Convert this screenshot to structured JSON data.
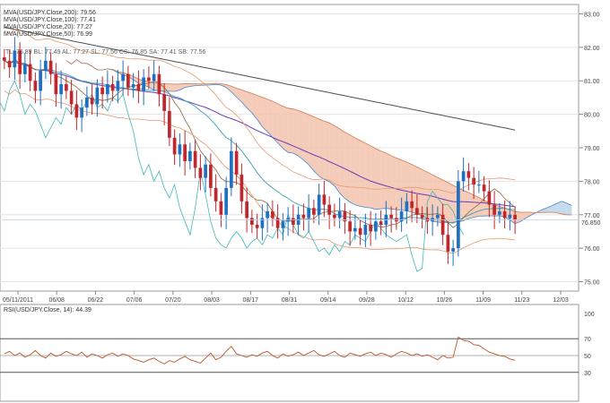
{
  "chart_data": [
    {
      "type": "candlestick",
      "symbol": "USD/JPY",
      "legend": [
        {
          "name": "MVA(USD/JPY.Close,200)",
          "value": "79.56",
          "color": "#5a5a5a"
        },
        {
          "name": "MVA(USD/JPY.Close,100)",
          "value": "77.41",
          "color": "#6a3db8"
        },
        {
          "name": "MVA(USD/JPY.Close,20)",
          "value": "77.27",
          "color": "#3aa3b0"
        },
        {
          "name": "MVA(USD/JPY.Close,50)",
          "value": "76.99",
          "color": "#8a6a3a"
        }
      ],
      "ichimoku_legend": "TL: 76.89  BL: 77.49  AL: 77.27  SL: 77.56  CS: 76.85  SA: 77.41  SB: 77.56",
      "last_price": "76.850",
      "x_tick_labels": [
        "05/11/2011",
        "06/08",
        "06/22",
        "07/06",
        "07/20",
        "08/03",
        "08/17",
        "08/31",
        "09/14",
        "09/28",
        "10/12",
        "10/26",
        "11/09",
        "11/23",
        "12/03"
      ],
      "y_tick_labels": [
        "83.00",
        "82.00",
        "81.00",
        "80.00",
        "79.00",
        "78.00",
        "77.00",
        "76.00",
        "75.00"
      ],
      "ylim": [
        74.8,
        83.2
      ],
      "close": [
        81.6,
        81.4,
        81.9,
        81.2,
        81.5,
        81.0,
        80.7,
        81.3,
        81.6,
        81.2,
        80.6,
        80.9,
        80.7,
        80.3,
        79.9,
        80.2,
        80.5,
        80.3,
        80.8,
        80.6,
        80.9,
        80.7,
        81.0,
        81.2,
        80.8,
        80.9,
        80.7,
        81.1,
        81.0,
        81.2,
        80.6,
        80.1,
        79.3,
        78.8,
        79.1,
        78.6,
        78.9,
        78.4,
        78.1,
        78.5,
        77.8,
        77.4,
        77.0,
        77.8,
        78.9,
        78.2,
        77.4,
        76.9,
        76.7,
        76.6,
        76.9,
        77.1,
        76.9,
        76.6,
        76.8,
        76.9,
        76.7,
        77.0,
        76.9,
        77.2,
        77.0,
        77.6,
        77.3,
        77.0,
        76.9,
        77.1,
        76.8,
        76.5,
        76.6,
        76.4,
        76.7,
        76.5,
        76.8,
        76.7,
        77.0,
        76.9,
        76.8,
        77.1,
        77.4,
        77.2,
        77.0,
        76.9,
        76.8,
        76.9,
        77.0,
        76.4,
        75.9,
        76.0,
        78.0,
        78.3,
        78.1,
        77.9,
        77.9,
        77.7,
        77.3,
        77.0,
        77.1,
        76.9,
        77.0,
        76.85
      ]
    },
    {
      "type": "line",
      "title": "RSI(USD/JPY.Close, 14): 44.39",
      "series": [
        {
          "name": "RSI",
          "values": [
            52,
            55,
            50,
            53,
            48,
            51,
            56,
            50,
            47,
            53,
            49,
            51,
            55,
            52,
            50,
            54,
            48,
            52,
            50,
            47,
            51,
            53,
            49,
            52,
            50,
            46,
            44,
            42,
            45,
            47,
            43,
            40,
            44,
            42,
            46,
            49,
            45,
            43,
            41,
            47,
            53,
            45,
            48,
            55,
            61,
            52,
            50,
            48,
            51,
            49,
            53,
            55,
            50,
            47,
            52,
            49,
            51,
            54,
            50,
            53,
            56,
            51,
            49,
            52,
            55,
            50,
            48,
            53,
            51,
            49,
            52,
            54,
            50,
            53,
            51,
            48,
            52,
            55,
            53,
            50,
            52,
            49,
            51,
            48,
            45,
            50,
            47,
            48,
            72,
            68,
            67,
            63,
            62,
            58,
            54,
            52,
            50,
            49,
            46,
            44.39
          ]
        }
      ],
      "y_tick_labels": [
        "100",
        "70",
        "50",
        "30"
      ],
      "ylim": [
        0,
        100
      ]
    }
  ]
}
